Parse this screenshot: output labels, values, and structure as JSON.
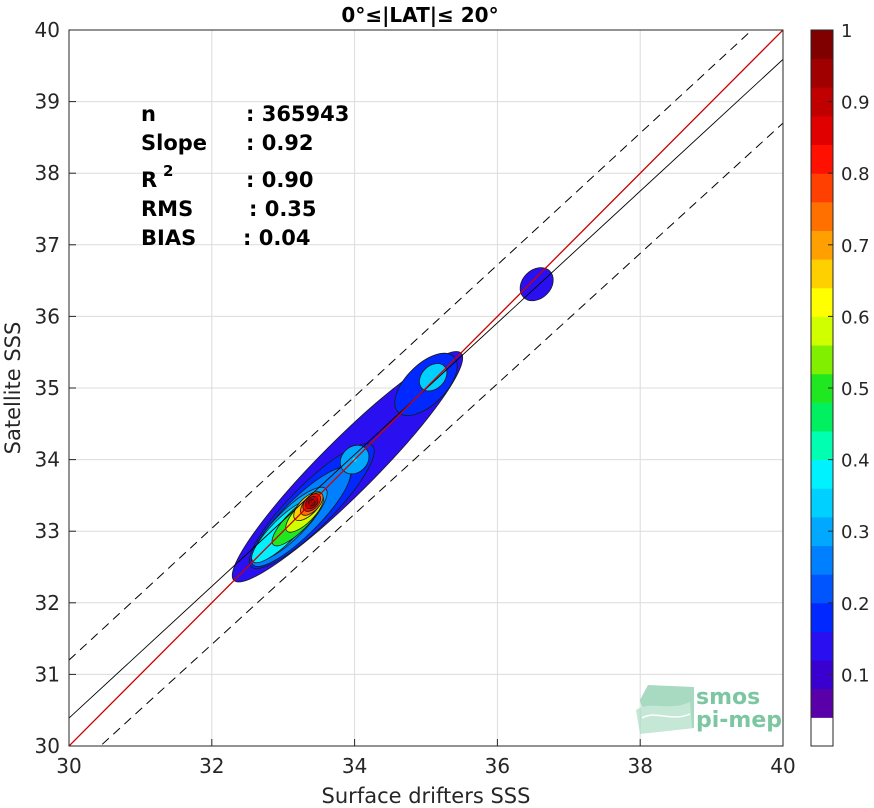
{
  "chart_data": {
    "type": "heatmap",
    "title": "0°≤|LAT|≤ 20°",
    "xlabel": "Surface drifters SSS",
    "ylabel": "Satellite SSS",
    "xlim": [
      30,
      40
    ],
    "ylim": [
      30,
      40
    ],
    "xticks": [
      30,
      32,
      34,
      36,
      38,
      40
    ],
    "yticks": [
      30,
      31,
      32,
      33,
      34,
      35,
      36,
      37,
      38,
      39,
      40
    ],
    "grid": true,
    "stats": [
      {
        "label": "n",
        "value": ": 365943"
      },
      {
        "label": "Slope",
        "value": ": 0.92"
      },
      {
        "label": "R",
        "sup": "2",
        "value": ": 0.90"
      },
      {
        "label": "RMS",
        "value": ": 0.35"
      },
      {
        "label": "BIAS",
        "value": ": 0.04"
      }
    ],
    "lines": {
      "identity": {
        "x": [
          30,
          40
        ],
        "y": [
          30,
          40
        ],
        "color": "#cc0000"
      },
      "regression": {
        "x": [
          30,
          40
        ],
        "y": [
          30.39,
          39.59
        ],
        "color": "#000000"
      },
      "upper_bound": {
        "x": [
          30,
          40
        ],
        "y": [
          31.2,
          40.4
        ],
        "style": "dashed"
      },
      "lower_bound": {
        "x": [
          30,
          40
        ],
        "y": [
          29.6,
          38.7
        ],
        "style": "dashed"
      }
    },
    "density_peaks": [
      {
        "x": 33.4,
        "y": 33.4,
        "value": 0.95
      },
      {
        "x": 34.0,
        "y": 34.0,
        "value": 0.38
      },
      {
        "x": 35.1,
        "y": 35.1,
        "value": 0.32
      },
      {
        "x": 36.5,
        "y": 36.4,
        "value": 0.12
      }
    ],
    "colorbar": {
      "ticks": [
        "0.1",
        "0.2",
        "0.3",
        "0.4",
        "0.5",
        "0.6",
        "0.7",
        "0.8",
        "0.9",
        "1"
      ],
      "range": [
        0,
        1
      ],
      "colors": [
        "#ffffff",
        "#5a00a8",
        "#3a00d0",
        "#2a10f0",
        "#0028ff",
        "#0055ff",
        "#0080ff",
        "#00a8ff",
        "#00d0ff",
        "#00f2ff",
        "#00ffb0",
        "#00f060",
        "#20e820",
        "#80f000",
        "#d0ff00",
        "#ffff00",
        "#ffd000",
        "#ffa000",
        "#ff7000",
        "#ff4000",
        "#ff1000",
        "#e00000",
        "#c00000",
        "#a00000",
        "#800000"
      ]
    }
  },
  "logo": {
    "line1": "smos",
    "line2": "pi-mep"
  }
}
